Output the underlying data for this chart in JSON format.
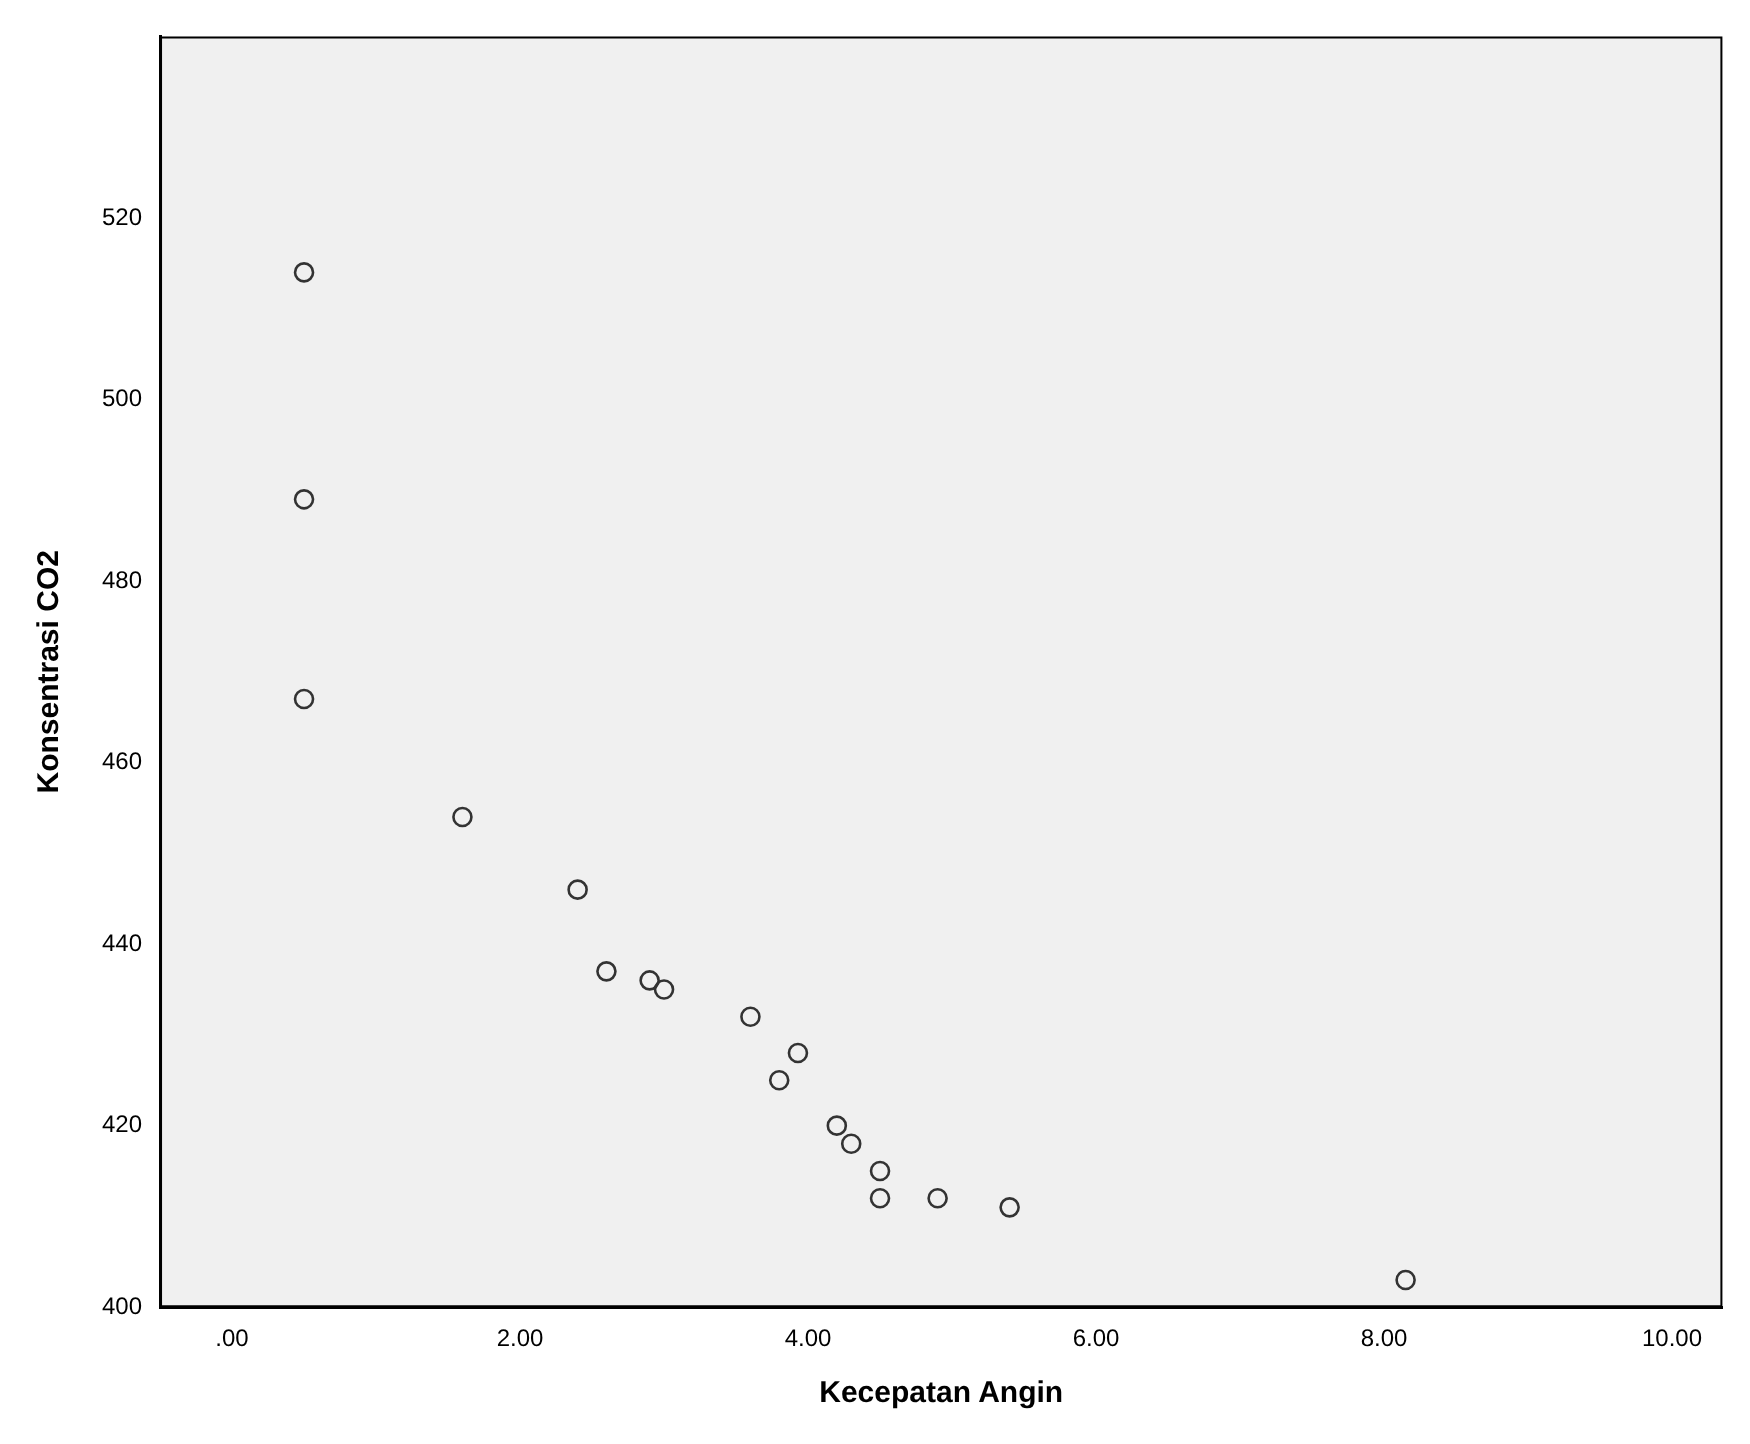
{
  "chart_data": {
    "type": "scatter",
    "xlabel": "Kecepatan Angin",
    "ylabel": "Konsentrasi CO2",
    "x": [
      0.5,
      0.5,
      0.5,
      1.6,
      2.4,
      2.6,
      2.9,
      3.0,
      3.6,
      3.93,
      3.8,
      4.2,
      4.3,
      4.5,
      4.5,
      4.9,
      5.4,
      8.15
    ],
    "series": [
      {
        "color": "#333333",
        "values": [
          514,
          489,
          467,
          454,
          446,
          437,
          436,
          435,
          432,
          428,
          425,
          420,
          418,
          415,
          412,
          412,
          411,
          403
        ]
      }
    ],
    "xlim": [
      -0.5,
      10.35
    ],
    "ylim": [
      400,
      540
    ],
    "xticks": [
      {
        "value": 0,
        "label": ".00"
      },
      {
        "value": 2,
        "label": "2.00"
      },
      {
        "value": 4,
        "label": "4.00"
      },
      {
        "value": 6,
        "label": "6.00"
      },
      {
        "value": 8,
        "label": "8.00"
      },
      {
        "value": 10,
        "label": "10.00"
      }
    ],
    "yticks": [
      400,
      420,
      440,
      460,
      480,
      500,
      520
    ],
    "marker": "circle",
    "grid": false,
    "legend": false
  }
}
